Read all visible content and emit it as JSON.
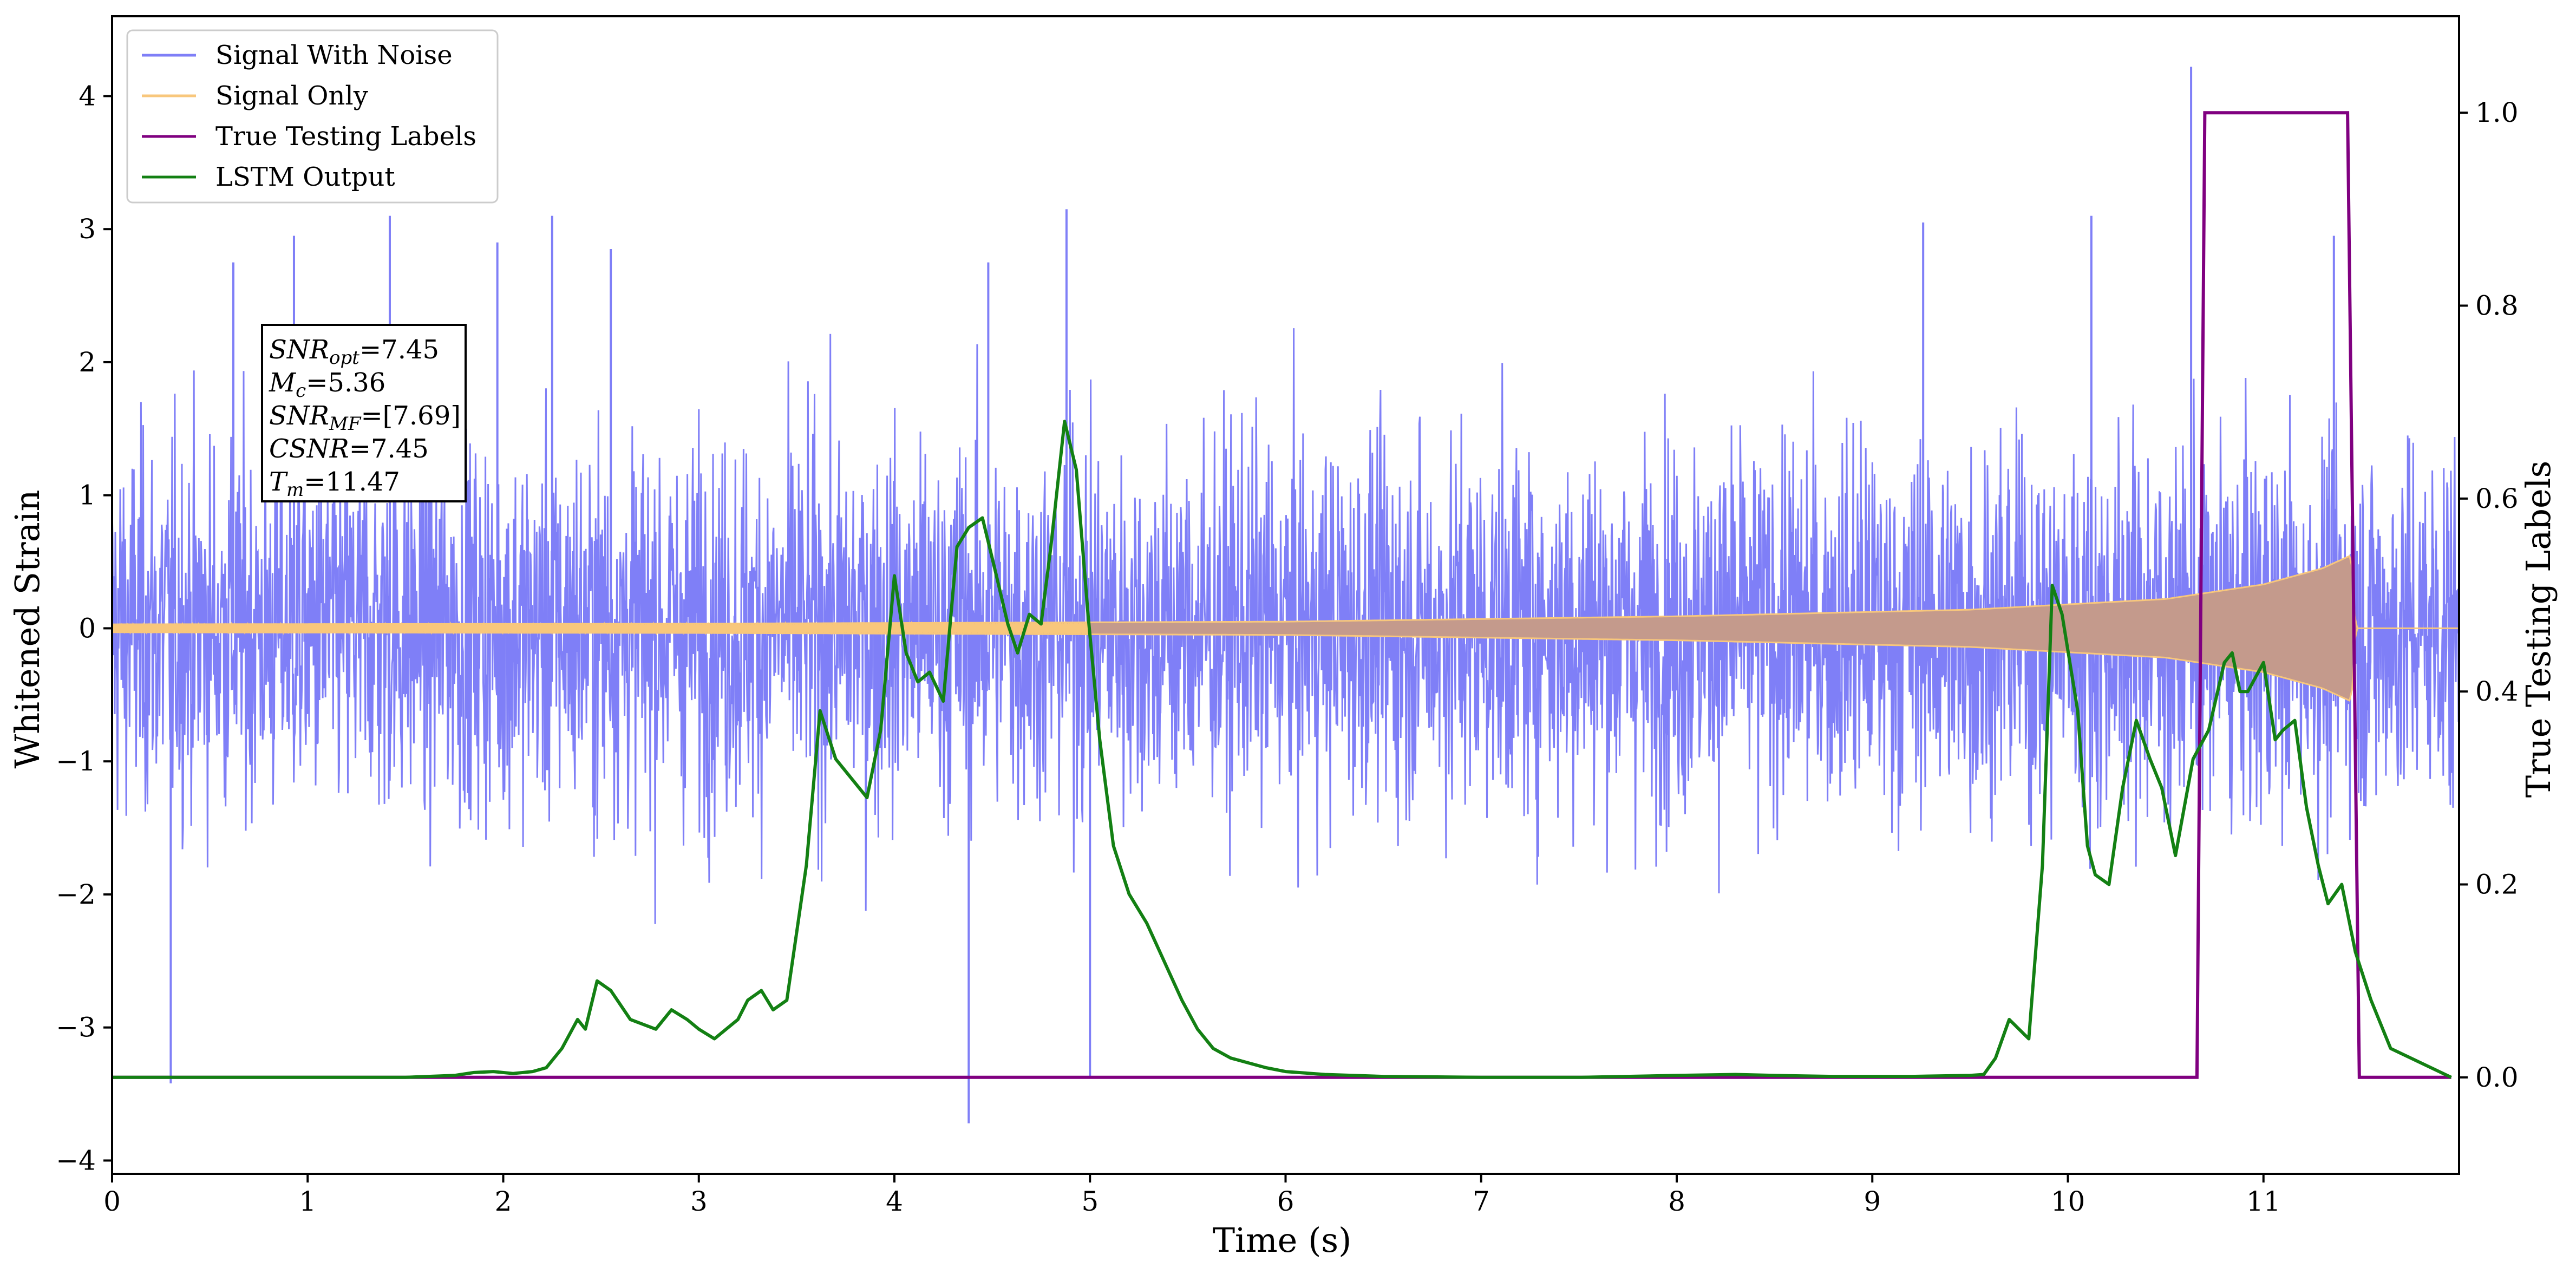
{
  "chart_data": {
    "type": "line",
    "title": "",
    "xlabel": "Time (s)",
    "ylabel": "Whitened Strain",
    "y2label": "True Testing Labels",
    "xlim": [
      0,
      12.0
    ],
    "ylim": [
      -4.1,
      4.6
    ],
    "y2lim": [
      -0.1,
      1.1
    ],
    "xticks": [
      0,
      1,
      2,
      3,
      4,
      5,
      6,
      7,
      8,
      9,
      10,
      11
    ],
    "yticks": [
      -4,
      -3,
      -2,
      -1,
      0,
      1,
      2,
      3,
      4
    ],
    "y2ticks": [
      "0.0",
      "0.2",
      "0.4",
      "0.6",
      "0.8",
      "1.0"
    ],
    "legend_position": "top-left",
    "grid": false,
    "colors": {
      "noise": "#7f7ff7",
      "signal": "#f8c77c",
      "labels": "#800080",
      "lstm": "#138013"
    },
    "series": [
      {
        "name": "Signal With Noise",
        "axis": "left",
        "description_envelope": {
          "typical_amplitude": 1.6,
          "max_spike": 4.22,
          "min_spike": -3.72
        },
        "spikes": [
          [
            0.3,
            -3.42
          ],
          [
            0.62,
            2.75
          ],
          [
            0.93,
            2.95
          ],
          [
            1.42,
            3.1
          ],
          [
            1.97,
            2.9
          ],
          [
            2.25,
            3.1
          ],
          [
            2.55,
            2.85
          ],
          [
            4.38,
            -3.72
          ],
          [
            4.48,
            2.75
          ],
          [
            4.88,
            3.15
          ],
          [
            5.0,
            -3.37
          ],
          [
            9.26,
            3.05
          ],
          [
            10.12,
            3.1
          ],
          [
            10.63,
            4.22
          ],
          [
            11.36,
            2.95
          ]
        ]
      },
      {
        "name": "Signal Only",
        "axis": "left",
        "envelope": [
          [
            0.0,
            0.03
          ],
          [
            3.0,
            0.035
          ],
          [
            6.0,
            0.05
          ],
          [
            8.0,
            0.09
          ],
          [
            9.5,
            0.14
          ],
          [
            10.5,
            0.22
          ],
          [
            11.0,
            0.33
          ],
          [
            11.3,
            0.45
          ],
          [
            11.45,
            0.55
          ],
          [
            11.47,
            0.0
          ],
          [
            12.0,
            0.0
          ]
        ]
      },
      {
        "name": "True Testing Labels",
        "axis": "right",
        "x": [
          0.0,
          10.66,
          10.7,
          11.43,
          11.49,
          11.96
        ],
        "values": [
          0.0,
          0.0,
          1.0,
          1.0,
          0.0,
          0.0
        ]
      },
      {
        "name": "LSTM Output",
        "axis": "right",
        "x": [
          0.0,
          0.25,
          0.5,
          1.0,
          1.5,
          1.75,
          1.85,
          1.95,
          2.05,
          2.15,
          2.22,
          2.3,
          2.38,
          2.42,
          2.48,
          2.55,
          2.65,
          2.78,
          2.86,
          2.94,
          3.0,
          3.08,
          3.2,
          3.25,
          3.32,
          3.38,
          3.45,
          3.5,
          3.55,
          3.62,
          3.7,
          3.78,
          3.86,
          3.93,
          4.0,
          4.06,
          4.12,
          4.18,
          4.25,
          4.32,
          4.38,
          4.45,
          4.51,
          4.58,
          4.63,
          4.69,
          4.75,
          4.8,
          4.87,
          4.93,
          4.99,
          5.05,
          5.12,
          5.2,
          5.29,
          5.38,
          5.47,
          5.55,
          5.63,
          5.72,
          5.81,
          5.9,
          6.0,
          6.2,
          6.5,
          7.0,
          7.5,
          8.0,
          8.3,
          8.5,
          8.8,
          9.0,
          9.2,
          9.5,
          9.57,
          9.63,
          9.7,
          9.75,
          9.8,
          9.87,
          9.92,
          9.97,
          10.05,
          10.1,
          10.14,
          10.21,
          10.28,
          10.35,
          10.42,
          10.48,
          10.55,
          10.64,
          10.72,
          10.8,
          10.84,
          10.88,
          10.92,
          11.0,
          11.06,
          11.1,
          11.16,
          11.22,
          11.28,
          11.33,
          11.4,
          11.47,
          11.55,
          11.65,
          11.96
        ],
        "values": [
          0.0,
          0.0,
          0.0,
          0.0,
          0.0,
          0.002,
          0.005,
          0.006,
          0.004,
          0.006,
          0.01,
          0.03,
          0.06,
          0.05,
          0.1,
          0.09,
          0.06,
          0.05,
          0.07,
          0.06,
          0.05,
          0.04,
          0.06,
          0.08,
          0.09,
          0.07,
          0.08,
          0.15,
          0.22,
          0.38,
          0.33,
          0.31,
          0.29,
          0.36,
          0.52,
          0.44,
          0.41,
          0.42,
          0.39,
          0.55,
          0.57,
          0.58,
          0.53,
          0.47,
          0.44,
          0.48,
          0.47,
          0.55,
          0.68,
          0.63,
          0.48,
          0.35,
          0.24,
          0.19,
          0.16,
          0.12,
          0.08,
          0.05,
          0.03,
          0.02,
          0.015,
          0.01,
          0.006,
          0.003,
          0.001,
          0.0,
          0.0,
          0.002,
          0.003,
          0.002,
          0.001,
          0.001,
          0.001,
          0.002,
          0.003,
          0.02,
          0.06,
          0.05,
          0.04,
          0.22,
          0.51,
          0.48,
          0.38,
          0.24,
          0.21,
          0.2,
          0.3,
          0.37,
          0.33,
          0.3,
          0.23,
          0.33,
          0.36,
          0.43,
          0.44,
          0.4,
          0.4,
          0.43,
          0.35,
          0.36,
          0.37,
          0.28,
          0.22,
          0.18,
          0.2,
          0.13,
          0.08,
          0.03,
          0.0
        ]
      }
    ],
    "annotation": {
      "lines": [
        {
          "key": "SNR",
          "sub": "opt",
          "value": "=7.45"
        },
        {
          "key": "M",
          "sub": "c",
          "value": "=5.36"
        },
        {
          "key": "SNR",
          "sub": "MF",
          "value": "=[7.69]"
        },
        {
          "key": "CSNR",
          "sub": "",
          "value": "=7.45"
        },
        {
          "key": "T",
          "sub": "m",
          "value": "=11.47"
        }
      ]
    }
  }
}
